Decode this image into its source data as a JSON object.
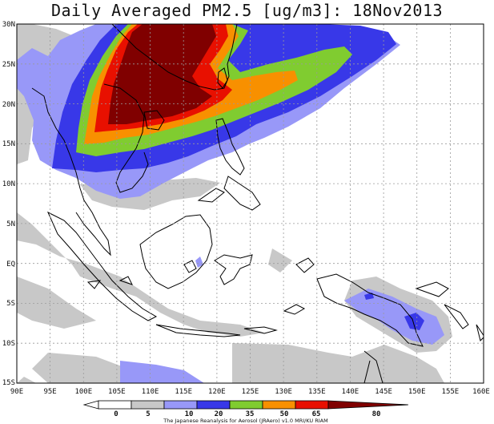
{
  "title": "Daily Averaged PM2.5 [ug/m3]: 18Nov2013",
  "lon_ticks": [
    "90E",
    "95E",
    "100E",
    "105E",
    "110E",
    "115E",
    "120E",
    "125E",
    "130E",
    "135E",
    "140E",
    "145E",
    "150E",
    "155E",
    "160E"
  ],
  "lat_ticks": [
    "30N",
    "25N",
    "20N",
    "15N",
    "10N",
    "5N",
    "EQ",
    "5S",
    "10S",
    "15S"
  ],
  "legend": {
    "levels": [
      "0",
      "5",
      "10",
      "20",
      "35",
      "50",
      "65",
      "80"
    ],
    "colors": [
      "#ffffff",
      "#ffffff",
      "#c8c8c8",
      "#9898f8",
      "#3838e8",
      "#80cc30",
      "#f89000",
      "#e81000",
      "#800000"
    ]
  },
  "credit": "The Japanese Reanalysis for Aerosol (JRAero) v1.0 MRI/KU RIAM"
}
